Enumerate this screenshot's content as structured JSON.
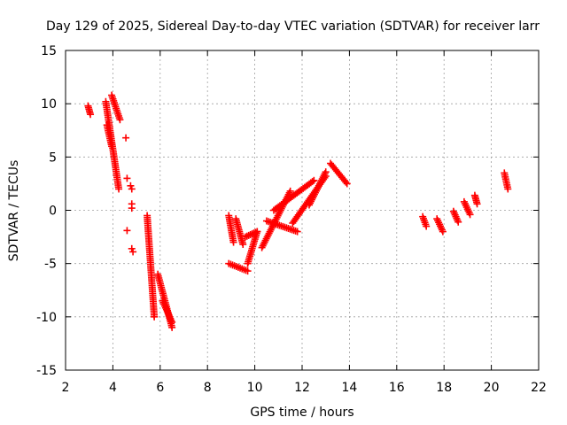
{
  "chart_data": {
    "type": "scatter",
    "title": "Day 129 of 2025, Sidereal Day-to-day VTEC variation (SDTVAR) for receiver larr",
    "xlabel": "GPS time / hours",
    "ylabel": "SDTVAR / TECUs",
    "xlim": [
      2,
      22
    ],
    "ylim": [
      -15,
      15
    ],
    "xticks": [
      2,
      4,
      6,
      8,
      10,
      12,
      14,
      16,
      18,
      20,
      22
    ],
    "yticks": [
      -15,
      -10,
      -5,
      0,
      5,
      10,
      15
    ],
    "xtick_labels": [
      "2",
      "4",
      "6",
      "8",
      "10",
      "12",
      "14",
      "16",
      "18",
      "20",
      "22"
    ],
    "ytick_labels": [
      "-15",
      "-10",
      "-5",
      "0",
      "5",
      "10",
      "15"
    ],
    "grid": true,
    "marker": "+",
    "color": "#ff0000",
    "segments": [
      {
        "x": [
          2.95,
          3.05
        ],
        "y": [
          9.8,
          9.0
        ]
      },
      {
        "x": [
          3.7,
          4.25
        ],
        "y": [
          10.2,
          2.0
        ]
      },
      {
        "x": [
          3.95,
          4.3
        ],
        "y": [
          10.8,
          8.5
        ]
      },
      {
        "x": [
          3.75,
          3.95
        ],
        "y": [
          8.0,
          6.0
        ]
      },
      {
        "x": [
          5.45,
          5.75
        ],
        "y": [
          -0.5,
          -10.0
        ]
      },
      {
        "x": [
          5.9,
          6.5
        ],
        "y": [
          -6.0,
          -11.0
        ]
      },
      {
        "x": [
          6.1,
          6.5
        ],
        "y": [
          -8.5,
          -10.5
        ]
      },
      {
        "x": [
          8.9,
          9.1
        ],
        "y": [
          -0.5,
          -3.0
        ]
      },
      {
        "x": [
          8.9,
          9.7
        ],
        "y": [
          -5.0,
          -5.7
        ]
      },
      {
        "x": [
          9.2,
          9.5
        ],
        "y": [
          -0.8,
          -3.2
        ]
      },
      {
        "x": [
          9.7,
          10.1
        ],
        "y": [
          -5.0,
          -2.0
        ]
      },
      {
        "x": [
          9.6,
          10.1
        ],
        "y": [
          -2.5,
          -2.0
        ]
      },
      {
        "x": [
          10.3,
          11.5
        ],
        "y": [
          -3.5,
          1.8
        ]
      },
      {
        "x": [
          10.5,
          11.8
        ],
        "y": [
          -1.0,
          -2.0
        ]
      },
      {
        "x": [
          10.8,
          12.5
        ],
        "y": [
          0.0,
          2.8
        ]
      },
      {
        "x": [
          11.6,
          13.0
        ],
        "y": [
          -1.2,
          3.2
        ]
      },
      {
        "x": [
          12.3,
          13.0
        ],
        "y": [
          0.5,
          3.6
        ]
      },
      {
        "x": [
          13.2,
          13.9
        ],
        "y": [
          4.4,
          2.5
        ]
      },
      {
        "x": [
          17.1,
          17.25
        ],
        "y": [
          -0.6,
          -1.5
        ]
      },
      {
        "x": [
          17.7,
          17.95
        ],
        "y": [
          -0.8,
          -2.0
        ]
      },
      {
        "x": [
          18.4,
          18.6
        ],
        "y": [
          -0.1,
          -1.1
        ]
      },
      {
        "x": [
          18.85,
          19.1
        ],
        "y": [
          0.8,
          -0.4
        ]
      },
      {
        "x": [
          19.3,
          19.4
        ],
        "y": [
          1.4,
          0.6
        ]
      },
      {
        "x": [
          20.55,
          20.7
        ],
        "y": [
          3.5,
          2.0
        ]
      }
    ],
    "isolated_points": [
      {
        "x": 4.55,
        "y": 6.8
      },
      {
        "x": 4.6,
        "y": 3.0
      },
      {
        "x": 4.6,
        "y": -1.9
      },
      {
        "x": 4.75,
        "y": 2.3
      },
      {
        "x": 4.8,
        "y": 2.0
      },
      {
        "x": 4.8,
        "y": 0.6
      },
      {
        "x": 4.8,
        "y": 0.2
      },
      {
        "x": 4.8,
        "y": -3.6
      },
      {
        "x": 4.85,
        "y": -3.9
      }
    ]
  }
}
